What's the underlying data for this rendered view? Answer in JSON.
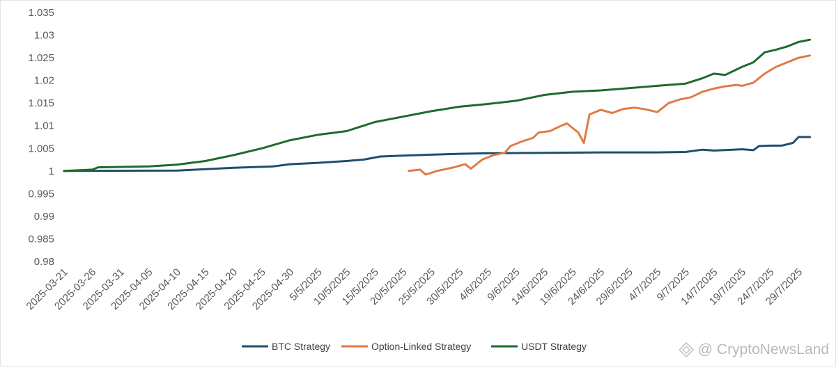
{
  "chart_data": {
    "type": "line",
    "ylim": [
      0.98,
      1.035
    ],
    "yticks": [
      "1.035",
      "1.03",
      "1.025",
      "1.02",
      "1.015",
      "1.01",
      "1.005",
      "1",
      "0.995",
      "0.99",
      "0.985",
      "0.98"
    ],
    "ytick_values": [
      1.035,
      1.03,
      1.025,
      1.02,
      1.015,
      1.01,
      1.005,
      1.0,
      0.995,
      0.99,
      0.985,
      0.98
    ],
    "xticks": [
      "2025-03-21",
      "2025-03-26",
      "2025-03-31",
      "2025-04-05",
      "2025-04-10",
      "2025-04-15",
      "2025-04-20",
      "2025-04-25",
      "2025-04-30",
      "5/5/2025",
      "10/5/2025",
      "15/5/2025",
      "20/5/2025",
      "25/5/2025",
      "30/5/2025",
      "4/6/2025",
      "9/6/2025",
      "14/6/2025",
      "19/6/2025",
      "24/6/2025",
      "29/6/2025",
      "4/7/2025",
      "9/7/2025",
      "14/7/2025",
      "19/7/2025",
      "24/7/2025",
      "29/7/2025"
    ],
    "xtick_dates": [
      "2025-03-21",
      "2025-03-26",
      "2025-03-31",
      "2025-04-05",
      "2025-04-10",
      "2025-04-15",
      "2025-04-20",
      "2025-04-25",
      "2025-04-30",
      "2025-05-05",
      "2025-05-10",
      "2025-05-15",
      "2025-05-20",
      "2025-05-25",
      "2025-05-30",
      "2025-06-04",
      "2025-06-09",
      "2025-06-14",
      "2025-06-19",
      "2025-06-24",
      "2025-06-29",
      "2025-07-04",
      "2025-07-09",
      "2025-07-14",
      "2025-07-19",
      "2025-07-24",
      "2025-07-29"
    ],
    "grid": false,
    "legend_position": "bottom",
    "series": [
      {
        "name": "BTC Strategy",
        "color": "#1f4e6e",
        "points": [
          [
            "2025-03-21",
            1.0
          ],
          [
            "2025-04-10",
            1.0001
          ],
          [
            "2025-04-20",
            1.0007
          ],
          [
            "2025-04-27",
            1.001
          ],
          [
            "2025-04-30",
            1.0015
          ],
          [
            "2025-05-05",
            1.0018
          ],
          [
            "2025-05-10",
            1.0022
          ],
          [
            "2025-05-13",
            1.0025
          ],
          [
            "2025-05-16",
            1.0032
          ],
          [
            "2025-05-20",
            1.0034
          ],
          [
            "2025-05-25",
            1.0036
          ],
          [
            "2025-05-30",
            1.0038
          ],
          [
            "2025-06-04",
            1.0039
          ],
          [
            "2025-06-14",
            1.004
          ],
          [
            "2025-06-24",
            1.0041
          ],
          [
            "2025-06-29",
            1.0041
          ],
          [
            "2025-07-04",
            1.0041
          ],
          [
            "2025-07-09",
            1.0042
          ],
          [
            "2025-07-12",
            1.0047
          ],
          [
            "2025-07-14",
            1.0045
          ],
          [
            "2025-07-19",
            1.0048
          ],
          [
            "2025-07-21",
            1.0046
          ],
          [
            "2025-07-22",
            1.0055
          ],
          [
            "2025-07-24",
            1.0056
          ],
          [
            "2025-07-26",
            1.0056
          ],
          [
            "2025-07-28",
            1.0062
          ],
          [
            "2025-07-29",
            1.0075
          ],
          [
            "2025-07-31",
            1.0075
          ]
        ]
      },
      {
        "name": "Option-Linked Strategy",
        "color": "#e07b45",
        "points": [
          [
            "2025-05-21",
            1.0
          ],
          [
            "2025-05-23",
            1.0003
          ],
          [
            "2025-05-24",
            0.9992
          ],
          [
            "2025-05-26",
            1.0
          ],
          [
            "2025-05-29",
            1.0008
          ],
          [
            "2025-05-31",
            1.0015
          ],
          [
            "2025-06-01",
            1.0005
          ],
          [
            "2025-06-03",
            1.0025
          ],
          [
            "2025-06-05",
            1.0035
          ],
          [
            "2025-06-07",
            1.004
          ],
          [
            "2025-06-08",
            1.0055
          ],
          [
            "2025-06-10",
            1.0065
          ],
          [
            "2025-06-12",
            1.0073
          ],
          [
            "2025-06-13",
            1.0085
          ],
          [
            "2025-06-15",
            1.0088
          ],
          [
            "2025-06-17",
            1.01
          ],
          [
            "2025-06-18",
            1.0105
          ],
          [
            "2025-06-20",
            1.0085
          ],
          [
            "2025-06-21",
            1.0062
          ],
          [
            "2025-06-22",
            1.0125
          ],
          [
            "2025-06-24",
            1.0135
          ],
          [
            "2025-06-26",
            1.0128
          ],
          [
            "2025-06-28",
            1.0137
          ],
          [
            "2025-06-30",
            1.014
          ],
          [
            "2025-07-02",
            1.0136
          ],
          [
            "2025-07-04",
            1.013
          ],
          [
            "2025-07-06",
            1.015
          ],
          [
            "2025-07-08",
            1.0158
          ],
          [
            "2025-07-10",
            1.0163
          ],
          [
            "2025-07-12",
            1.0175
          ],
          [
            "2025-07-14",
            1.0182
          ],
          [
            "2025-07-16",
            1.0187
          ],
          [
            "2025-07-18",
            1.019
          ],
          [
            "2025-07-19",
            1.0188
          ],
          [
            "2025-07-21",
            1.0195
          ],
          [
            "2025-07-23",
            1.0215
          ],
          [
            "2025-07-25",
            1.023
          ],
          [
            "2025-07-27",
            1.024
          ],
          [
            "2025-07-29",
            1.025
          ],
          [
            "2025-07-31",
            1.0255
          ]
        ]
      },
      {
        "name": "USDT Strategy",
        "color": "#1e6b2e",
        "points": [
          [
            "2025-03-21",
            1.0
          ],
          [
            "2025-03-26",
            1.0003
          ],
          [
            "2025-03-27",
            1.0008
          ],
          [
            "2025-04-05",
            1.001
          ],
          [
            "2025-04-10",
            1.0014
          ],
          [
            "2025-04-15",
            1.0022
          ],
          [
            "2025-04-20",
            1.0035
          ],
          [
            "2025-04-25",
            1.005
          ],
          [
            "2025-04-30",
            1.0068
          ],
          [
            "2025-05-05",
            1.008
          ],
          [
            "2025-05-10",
            1.0088
          ],
          [
            "2025-05-15",
            1.0108
          ],
          [
            "2025-05-20",
            1.012
          ],
          [
            "2025-05-25",
            1.0132
          ],
          [
            "2025-05-30",
            1.0142
          ],
          [
            "2025-06-04",
            1.0148
          ],
          [
            "2025-06-09",
            1.0155
          ],
          [
            "2025-06-14",
            1.0168
          ],
          [
            "2025-06-19",
            1.0175
          ],
          [
            "2025-06-24",
            1.0178
          ],
          [
            "2025-06-29",
            1.0183
          ],
          [
            "2025-07-04",
            1.0188
          ],
          [
            "2025-07-09",
            1.0193
          ],
          [
            "2025-07-12",
            1.0205
          ],
          [
            "2025-07-14",
            1.0215
          ],
          [
            "2025-07-16",
            1.0212
          ],
          [
            "2025-07-17",
            1.0218
          ],
          [
            "2025-07-19",
            1.023
          ],
          [
            "2025-07-21",
            1.024
          ],
          [
            "2025-07-23",
            1.0262
          ],
          [
            "2025-07-25",
            1.0268
          ],
          [
            "2025-07-27",
            1.0275
          ],
          [
            "2025-07-29",
            1.0285
          ],
          [
            "2025-07-31",
            1.029
          ]
        ]
      }
    ]
  },
  "watermark": {
    "text": "@ CryptoNewsLand",
    "icon": "diamond-logo-icon",
    "color": "#b9b9b9"
  }
}
